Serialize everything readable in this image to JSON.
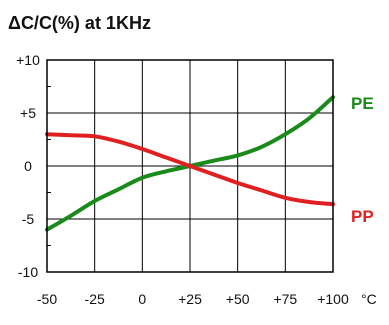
{
  "chart_data": {
    "type": "line",
    "title": "ΔC/C(%) at 1KHz",
    "x_unit": "°C",
    "xlim": [
      -50,
      100
    ],
    "ylim": [
      -10,
      10
    ],
    "x_ticks": [
      -50,
      -25,
      0,
      25,
      50,
      75,
      100
    ],
    "x_tick_labels": [
      "-50",
      "-25",
      "0",
      "+25",
      "+50",
      "+75",
      "+100"
    ],
    "y_ticks": [
      10,
      5,
      0,
      -5,
      -10
    ],
    "y_tick_labels": [
      "+10",
      "+5",
      "0",
      "-5",
      "-10"
    ],
    "grid": true,
    "series": [
      {
        "name": "PE",
        "color": "#1a8a1a",
        "x": [
          -50,
          -37.5,
          -25,
          -12.5,
          0,
          12.5,
          25,
          37.5,
          50,
          62.5,
          75,
          87.5,
          100
        ],
        "y": [
          -6.0,
          -4.7,
          -3.3,
          -2.2,
          -1.1,
          -0.5,
          0,
          0.5,
          1.0,
          1.8,
          3.0,
          4.5,
          6.5
        ]
      },
      {
        "name": "PP",
        "color": "#e02020",
        "x": [
          -50,
          -37.5,
          -25,
          -12.5,
          0,
          12.5,
          25,
          37.5,
          50,
          62.5,
          75,
          87.5,
          100
        ],
        "y": [
          3.0,
          2.9,
          2.8,
          2.3,
          1.6,
          0.8,
          0,
          -0.8,
          -1.6,
          -2.3,
          -3.0,
          -3.4,
          -3.6
        ]
      }
    ]
  }
}
